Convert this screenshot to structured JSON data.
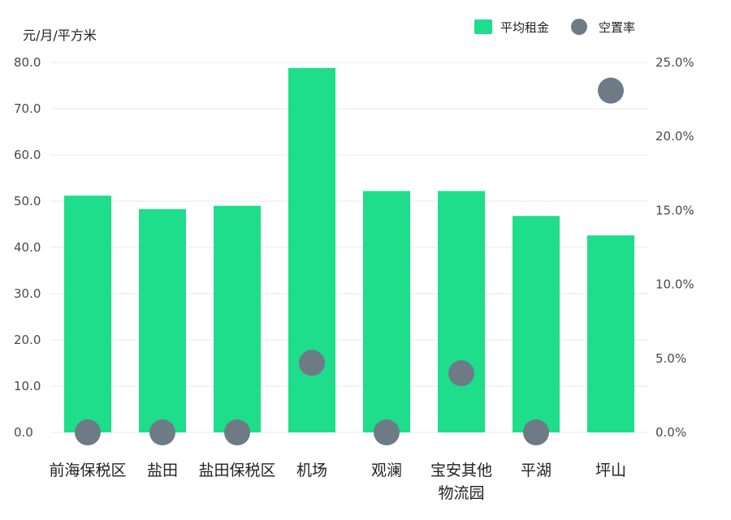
{
  "chart_data": {
    "type": "bar",
    "categories": [
      "前海保税区",
      "盐田",
      "盐田保税区",
      "机场",
      "观澜",
      "宝安其他物流园",
      "平湖",
      "坪山"
    ],
    "category_lines": [
      [
        "前海保税区"
      ],
      [
        "盐田"
      ],
      [
        "盐田保税区"
      ],
      [
        "机场"
      ],
      [
        "观澜"
      ],
      [
        "宝安其他",
        "物流园"
      ],
      [
        "平湖"
      ],
      [
        "坪山"
      ]
    ],
    "y_unit_label": "元/月/平方米",
    "y_ticks": [
      "0.0",
      "10.0",
      "20.0",
      "30.0",
      "40.0",
      "50.0",
      "60.0",
      "70.0",
      "80.0"
    ],
    "y2_ticks": [
      "0.0%",
      "5.0%",
      "10.0%",
      "15.0%",
      "20.0%",
      "25.0%"
    ],
    "ylim": [
      0,
      80
    ],
    "y2lim": [
      0,
      25
    ],
    "grid": true,
    "legend_position": "top-right",
    "series": [
      {
        "name": "平均租金",
        "kind": "bar",
        "axis": "left",
        "color": "#1edd8b",
        "values": [
          51.2,
          48.3,
          49.0,
          78.8,
          52.2,
          52.2,
          46.8,
          42.6
        ]
      },
      {
        "name": "空置率",
        "kind": "scatter",
        "axis": "right",
        "color": "#6e7b86",
        "values": [
          0.0,
          0.0,
          0.0,
          4.7,
          0.0,
          4.0,
          0.0,
          23.1
        ]
      }
    ]
  }
}
